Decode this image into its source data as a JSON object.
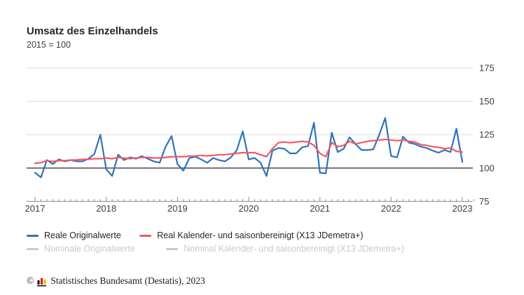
{
  "header": {
    "title": "Umsatz des Einzelhandels",
    "subtitle": "2015 = 100"
  },
  "chart_data": {
    "type": "line",
    "title": "Umsatz des Einzelhandels",
    "subtitle": "2015 = 100",
    "x_unit": "month",
    "x_range": [
      "2017-01",
      "2023-01"
    ],
    "x_tick_labels": [
      "2017",
      "2018",
      "2019",
      "2020",
      "2021",
      "2022",
      "2023"
    ],
    "y_ticks": [
      75,
      100,
      125,
      150,
      175
    ],
    "ylim": [
      75,
      175
    ],
    "baseline": 100,
    "grid": true,
    "axis_side": "right",
    "legend_position": "bottom",
    "series": [
      {
        "name": "Reale Originalwerte",
        "color": "#2f73b8",
        "values": [
          96.5,
          93,
          106,
          103,
          106.5,
          105,
          106,
          105,
          105,
          107,
          110.5,
          125,
          99,
          94,
          110,
          106,
          108,
          107,
          109,
          107,
          105,
          104,
          116,
          124,
          103,
          98,
          107.5,
          108.5,
          106.5,
          104,
          107.5,
          106,
          105,
          108,
          113.5,
          127.5,
          106.5,
          107.5,
          104,
          94,
          113,
          115,
          114.5,
          111,
          111,
          115.5,
          116.5,
          134,
          96.5,
          96,
          126.5,
          112,
          114.5,
          123,
          118,
          113.5,
          113.5,
          114,
          125,
          137.5,
          109,
          108,
          123.5,
          119,
          118,
          116,
          115,
          113,
          111.5,
          113.5,
          112,
          129.5,
          104.5
        ]
      },
      {
        "name": "Real Kalender- und saisonbereinigt (X13 JDemetra+)",
        "color": "#ef5a65",
        "values": [
          103.5,
          104,
          105.5,
          105,
          105.5,
          105.5,
          106,
          106,
          106.5,
          106.5,
          107,
          107,
          107.5,
          107,
          108,
          107.5,
          107,
          107.5,
          108,
          108,
          107.5,
          107.5,
          108,
          108.5,
          108.5,
          108.5,
          109,
          109,
          109.5,
          109,
          109.5,
          110,
          110,
          110.5,
          111,
          111.5,
          111.5,
          111.5,
          110,
          108.5,
          114.5,
          119,
          119.5,
          119,
          119.5,
          120,
          119.5,
          117,
          111,
          108.5,
          119,
          116,
          117,
          120,
          118,
          119,
          120,
          120.5,
          121,
          121.5,
          121,
          120.5,
          121,
          120,
          119.5,
          117.5,
          117,
          116,
          115.5,
          114.5,
          115,
          112.5,
          112
        ]
      }
    ]
  },
  "legend": {
    "items": [
      {
        "label": "Reale Originalwerte",
        "color": "#2f73b8",
        "active": true
      },
      {
        "label": "Real Kalender- und saisonbereinigt (X13 JDemetra+)",
        "color": "#ef5a65",
        "active": true
      },
      {
        "label": "Nominale Originalwerte",
        "color": "#c9c9c9",
        "active": false
      },
      {
        "label": "Nominal Kalender- und saisonbereinigt (X13 JDemetra+)",
        "color": "#c9c9c9",
        "active": false
      }
    ]
  },
  "footer": {
    "copyright_symbol": "©",
    "source": "Statistisches Bundesamt (Destatis), 2023"
  }
}
